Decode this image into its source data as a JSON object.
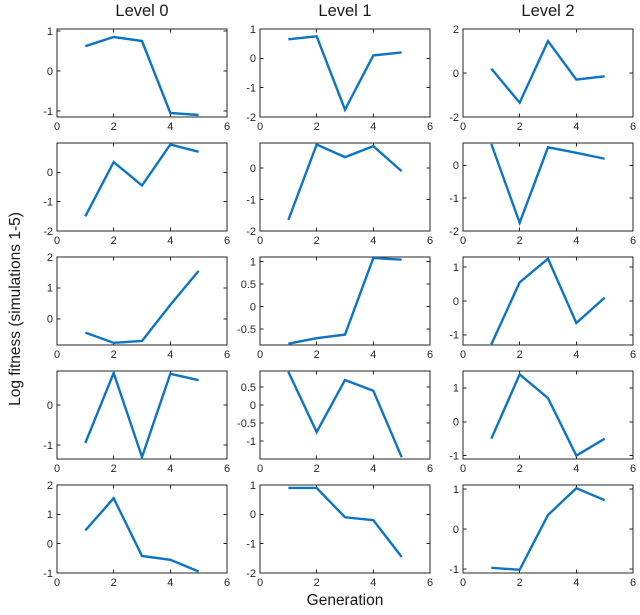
{
  "figure": {
    "ylabel": "Log fitness (simulations 1-5)",
    "xlabel": "Generation",
    "col_titles": [
      "Level 0",
      "Level 1",
      "Level 2"
    ],
    "line_color": "#0d74c4",
    "axis_color": "#262626",
    "background": "#ffffff"
  },
  "chart_data": {
    "type": "line",
    "grid": false,
    "legend": false,
    "x": [
      1,
      2,
      3,
      4,
      5
    ],
    "xlim": [
      0,
      6
    ],
    "xticks": [
      0,
      2,
      4,
      6
    ],
    "rows": 5,
    "cols": 3,
    "subplots": [
      {
        "row": 1,
        "col": 1,
        "title": "Level 0",
        "ylim": [
          -1.15,
          1.05
        ],
        "yticks": [
          -1,
          0,
          1
        ],
        "values": [
          0.62,
          0.85,
          0.75,
          -1.05,
          -1.1
        ]
      },
      {
        "row": 1,
        "col": 2,
        "title": "Level 1",
        "ylim": [
          -2,
          1
        ],
        "yticks": [
          -2,
          -1,
          0,
          1
        ],
        "values": [
          0.65,
          0.75,
          -1.75,
          0.1,
          0.2
        ]
      },
      {
        "row": 1,
        "col": 3,
        "title": "Level 2",
        "ylim": [
          -2,
          2
        ],
        "yticks": [
          -2,
          0,
          2
        ],
        "values": [
          0.2,
          -1.35,
          1.45,
          -0.3,
          -0.15
        ]
      },
      {
        "row": 2,
        "col": 1,
        "title": "",
        "ylim": [
          -2,
          1
        ],
        "yticks": [
          -2,
          -1,
          0
        ],
        "values": [
          -1.5,
          0.35,
          -0.45,
          0.95,
          0.7
        ]
      },
      {
        "row": 2,
        "col": 2,
        "title": "",
        "ylim": [
          -2,
          0.8
        ],
        "yticks": [
          -2,
          -1,
          0
        ],
        "values": [
          -1.65,
          0.75,
          0.35,
          0.7,
          -0.1
        ]
      },
      {
        "row": 2,
        "col": 3,
        "title": "",
        "ylim": [
          -2,
          0.68
        ],
        "yticks": [
          -2,
          -1,
          0
        ],
        "values": [
          0.65,
          -1.75,
          0.55,
          0.38,
          0.2
        ]
      },
      {
        "row": 3,
        "col": 1,
        "title": "",
        "ylim": [
          -0.85,
          2
        ],
        "yticks": [
          0,
          1,
          2
        ],
        "values": [
          -0.45,
          -0.78,
          -0.72,
          0.45,
          1.55
        ]
      },
      {
        "row": 3,
        "col": 2,
        "title": "",
        "ylim": [
          -0.85,
          1.1
        ],
        "yticks": [
          -0.5,
          0,
          0.5,
          1
        ],
        "values": [
          -0.82,
          -0.7,
          -0.62,
          1.08,
          1.04
        ]
      },
      {
        "row": 3,
        "col": 3,
        "title": "",
        "ylim": [
          -1.3,
          1.3
        ],
        "yticks": [
          -1,
          0,
          1
        ],
        "values": [
          -1.28,
          0.55,
          1.25,
          -0.65,
          0.1
        ]
      },
      {
        "row": 4,
        "col": 1,
        "title": "",
        "ylim": [
          -1.35,
          0.85
        ],
        "yticks": [
          -1,
          0
        ],
        "values": [
          -0.95,
          0.8,
          -1.3,
          0.78,
          0.62
        ]
      },
      {
        "row": 4,
        "col": 2,
        "title": "",
        "ylim": [
          -1.5,
          0.95
        ],
        "yticks": [
          -1,
          -0.5,
          0,
          0.5
        ],
        "values": [
          0.93,
          -0.75,
          0.7,
          0.4,
          -1.45
        ]
      },
      {
        "row": 4,
        "col": 3,
        "title": "",
        "ylim": [
          -1.1,
          1.5
        ],
        "yticks": [
          -1,
          0,
          1
        ],
        "values": [
          -0.5,
          1.4,
          0.7,
          -1.0,
          -0.5
        ]
      },
      {
        "row": 5,
        "col": 1,
        "title": "",
        "ylim": [
          -1,
          2
        ],
        "yticks": [
          -1,
          0,
          1,
          2
        ],
        "values": [
          0.45,
          1.55,
          -0.42,
          -0.55,
          -0.95
        ]
      },
      {
        "row": 5,
        "col": 2,
        "title": "",
        "ylim": [
          -2,
          1
        ],
        "yticks": [
          -2,
          -1,
          0,
          1
        ],
        "values": [
          0.9,
          0.9,
          -0.1,
          -0.2,
          -1.45
        ]
      },
      {
        "row": 5,
        "col": 3,
        "title": "",
        "ylim": [
          -1.1,
          1.1
        ],
        "yticks": [
          -1,
          0,
          1
        ],
        "values": [
          -0.97,
          -1.02,
          0.35,
          1.02,
          0.72
        ]
      }
    ]
  }
}
